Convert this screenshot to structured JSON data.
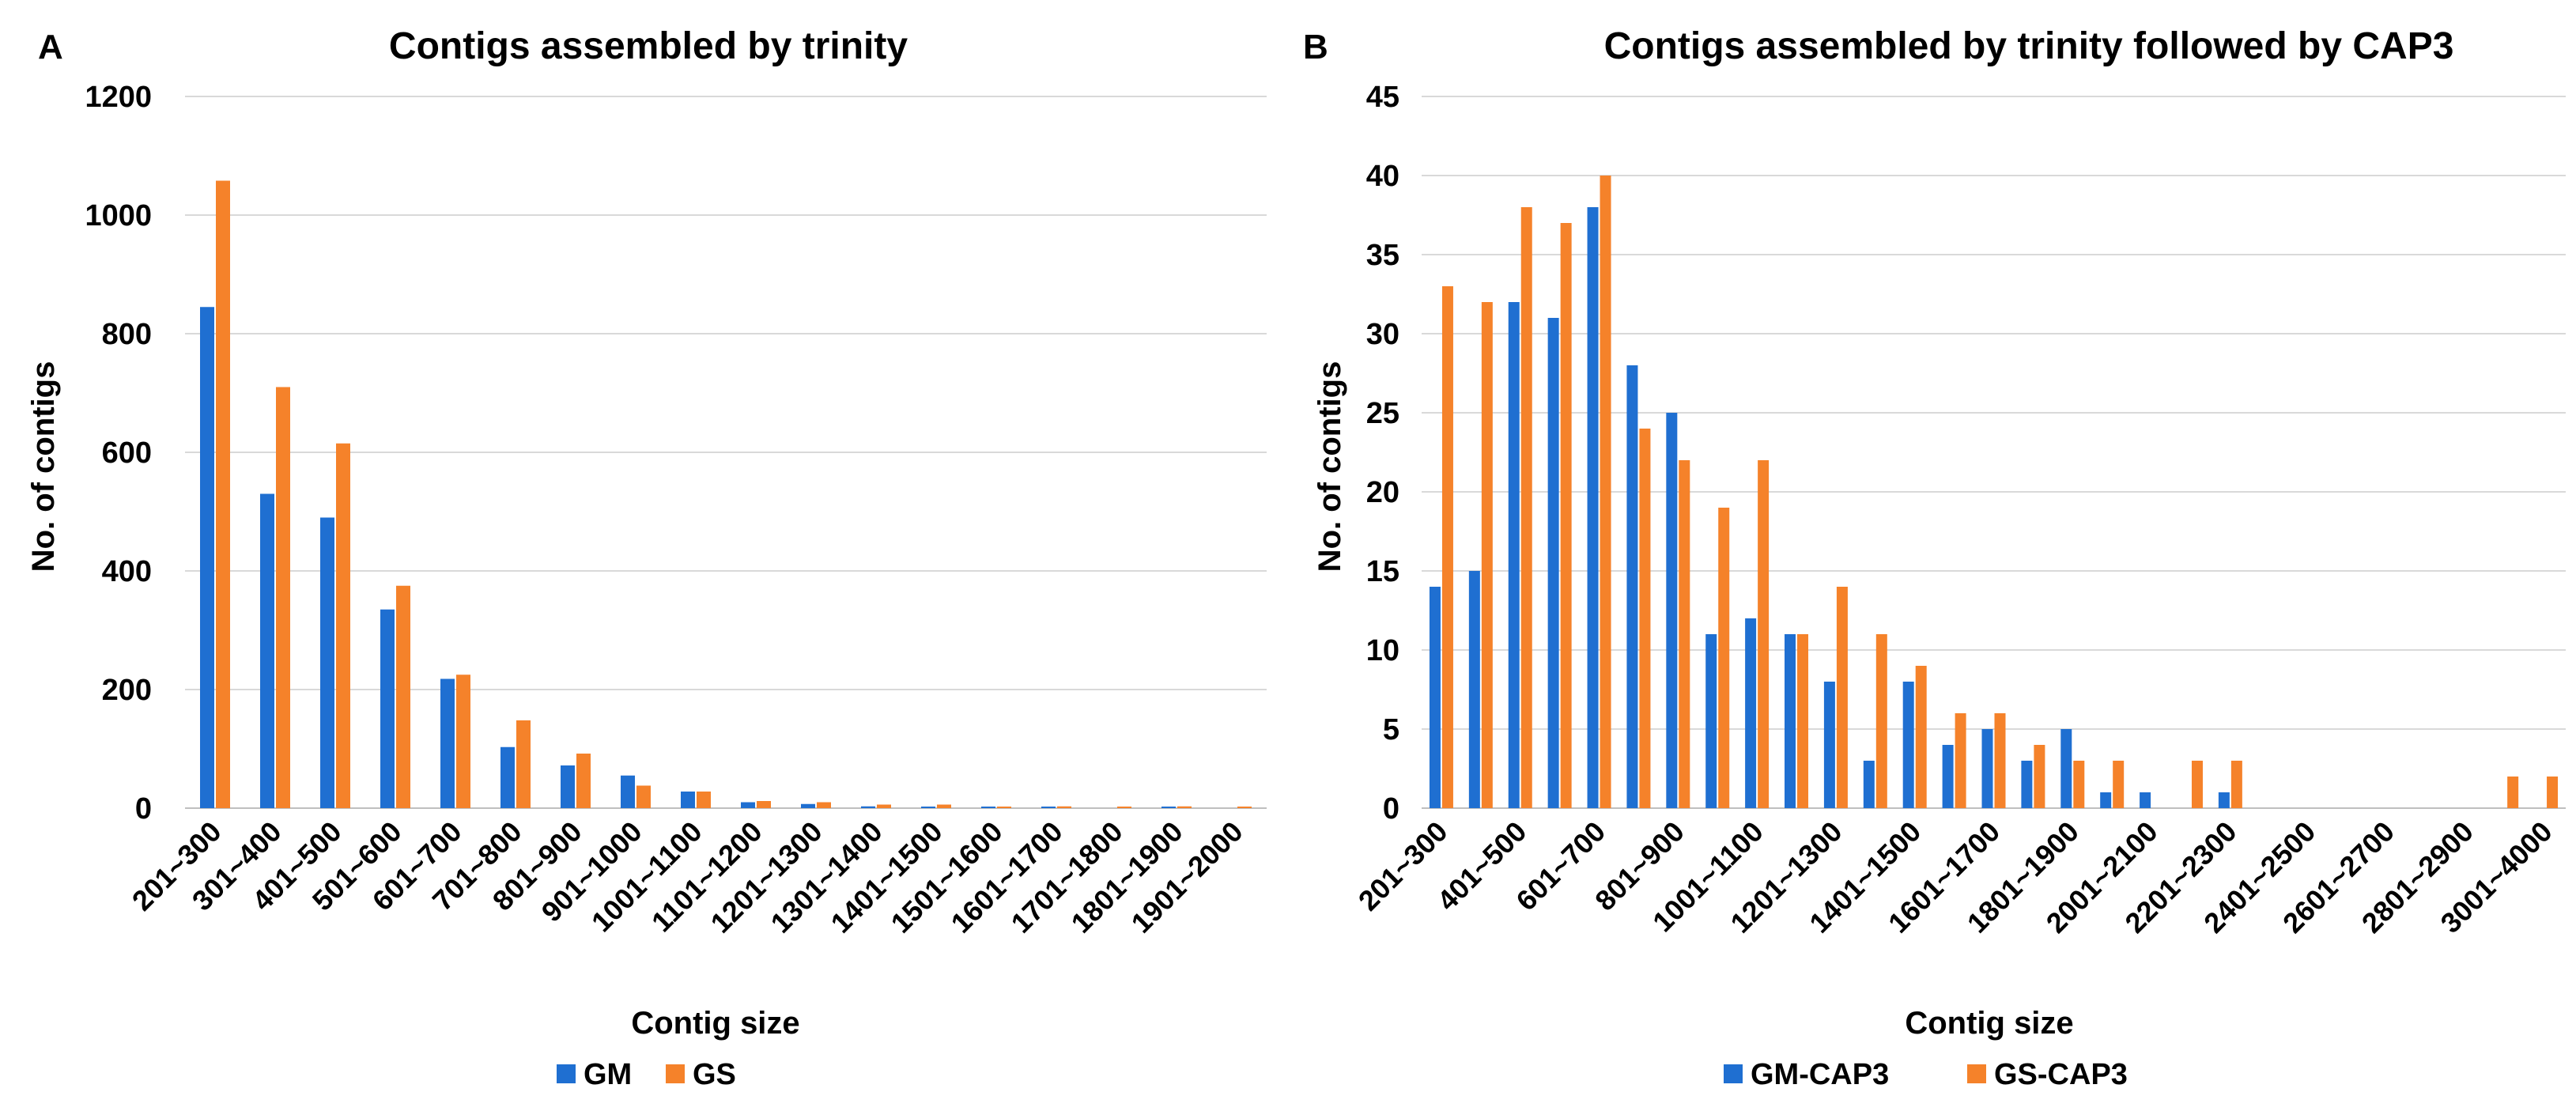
{
  "colors": {
    "blue": "#1f6fd1",
    "orange": "#f5822a"
  },
  "chart_data": [
    {
      "panel": "A",
      "type": "bar",
      "title": "Contigs assembled by trinity",
      "xlabel": "Contig size",
      "ylabel": "No. of contigs",
      "ylim": [
        0,
        1200
      ],
      "yticks": [
        0,
        200,
        400,
        600,
        800,
        1000,
        1200
      ],
      "grid": true,
      "legend": "bottom",
      "categories": [
        "201~300",
        "301~400",
        "401~500",
        "501~600",
        "601~700",
        "701~800",
        "801~900",
        "901~1000",
        "1001~1100",
        "1101~1200",
        "1201~1300",
        "1301~1400",
        "1401~1500",
        "1501~1600",
        "1601~1700",
        "1701~1800",
        "1801~1900",
        "1901~2000"
      ],
      "series": [
        {
          "name": "GM",
          "color": "#1f6fd1",
          "values": [
            845,
            530,
            490,
            335,
            218,
            103,
            72,
            55,
            28,
            10,
            7,
            3,
            2,
            1,
            1,
            0,
            1,
            0
          ]
        },
        {
          "name": "GS",
          "color": "#f5822a",
          "values": [
            1058,
            710,
            615,
            375,
            225,
            148,
            92,
            38,
            28,
            12,
            10,
            6,
            6,
            2,
            3,
            1,
            3,
            2
          ]
        }
      ]
    },
    {
      "panel": "B",
      "type": "bar",
      "title": "Contigs assembled by trinity followed by CAP3",
      "xlabel": "Contig size",
      "ylabel": "No. of contigs",
      "ylim": [
        0,
        45
      ],
      "yticks": [
        0,
        5,
        10,
        15,
        20,
        25,
        30,
        35,
        40,
        45
      ],
      "grid": true,
      "legend": "bottom",
      "categories": [
        "201~300",
        "301~400",
        "401~500",
        "501~600",
        "601~700",
        "701~800",
        "801~900",
        "901~1000",
        "1001~1100",
        "1101~1200",
        "1201~1300",
        "1301~1400",
        "1401~1500",
        "1501~1600",
        "1601~1700",
        "1701~1800",
        "1801~1900",
        "1901~2000",
        "2001~2100",
        "2101~2200",
        "2201~2300",
        "2301~2400",
        "2401~2500",
        "2501~2600",
        "2601~2700",
        "2701~2800",
        "2801~2900",
        "2901~3000",
        "3001~4000"
      ],
      "xtick_labels": [
        "201~300",
        "",
        "401~500",
        "",
        "601~700",
        "",
        "801~900",
        "",
        "1001~1100",
        "",
        "1201~1300",
        "",
        "1401~1500",
        "",
        "1601~1700",
        "",
        "1801~1900",
        "",
        "2001~2100",
        "",
        "2201~2300",
        "",
        "2401~2500",
        "",
        "2601~2700",
        "",
        "2801~2900",
        "",
        "3001~4000"
      ],
      "series": [
        {
          "name": "GM-CAP3",
          "color": "#1f6fd1",
          "values": [
            14,
            15,
            32,
            31,
            38,
            28,
            25,
            11,
            12,
            11,
            8,
            3,
            8,
            4,
            5,
            3,
            5,
            1,
            1,
            0,
            1,
            0,
            0,
            0,
            0,
            0,
            0,
            0,
            0
          ]
        },
        {
          "name": "GS-CAP3",
          "color": "#f5822a",
          "values": [
            33,
            32,
            38,
            37,
            40,
            24,
            22,
            19,
            22,
            11,
            14,
            11,
            9,
            6,
            6,
            4,
            3,
            3,
            0,
            3,
            3,
            0,
            0,
            0,
            0,
            0,
            0,
            2,
            2
          ]
        }
      ]
    }
  ]
}
